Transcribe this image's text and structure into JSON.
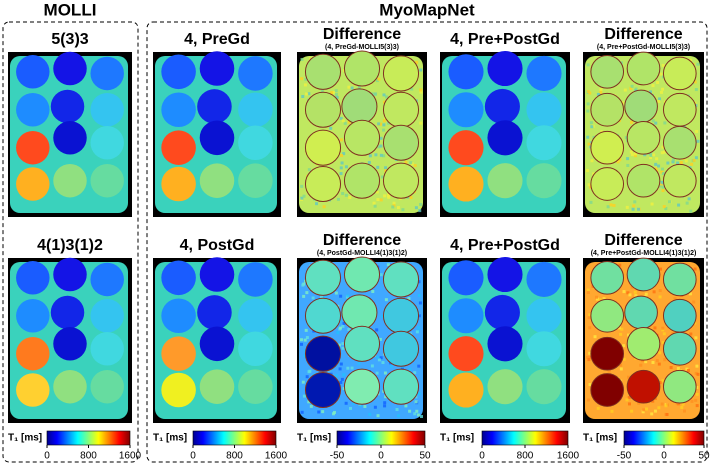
{
  "groups": [
    {
      "title": "MOLLI"
    },
    {
      "title": "MyoMapNet"
    }
  ],
  "panels": [
    {
      "title": "5(3)3"
    },
    {
      "title": "4, PreGd"
    },
    {
      "title": "Difference",
      "subtitle": "(4, PreGd-MOLLI5(3)3)"
    },
    {
      "title": "4, Pre+PostGd"
    },
    {
      "title": "Difference",
      "subtitle": "(4, Pre+PostGd-MOLLI5(3)3)"
    },
    {
      "title": "4(1)3(1)2"
    },
    {
      "title": "4, PostGd"
    },
    {
      "title": "Difference",
      "subtitle": "(4, PostGd-MOLLI4(1)3(1)2)"
    },
    {
      "title": "4, Pre+PostGd"
    },
    {
      "title": "Difference",
      "subtitle": "(4, Pre+PostGd-MOLLI4(1)3(1)2)"
    }
  ],
  "colorbars": [
    {
      "label": "T₁ [ms]",
      "lim": [
        0,
        1600
      ],
      "ticks": [
        0,
        800,
        1600
      ]
    },
    {
      "label": "T₁ [ms]",
      "lim": [
        0,
        1600
      ],
      "ticks": [
        0,
        800,
        1600
      ]
    },
    {
      "label": "T₁ [ms]",
      "lim": [
        -50,
        50
      ],
      "ticks": [
        -50,
        0,
        50
      ]
    },
    {
      "label": "T₁ [ms]",
      "lim": [
        0,
        1600
      ],
      "ticks": [
        0,
        800,
        1600
      ]
    },
    {
      "label": "T₁ [ms]",
      "lim": [
        -50,
        50
      ],
      "ticks": [
        -50,
        0,
        50
      ]
    }
  ]
}
